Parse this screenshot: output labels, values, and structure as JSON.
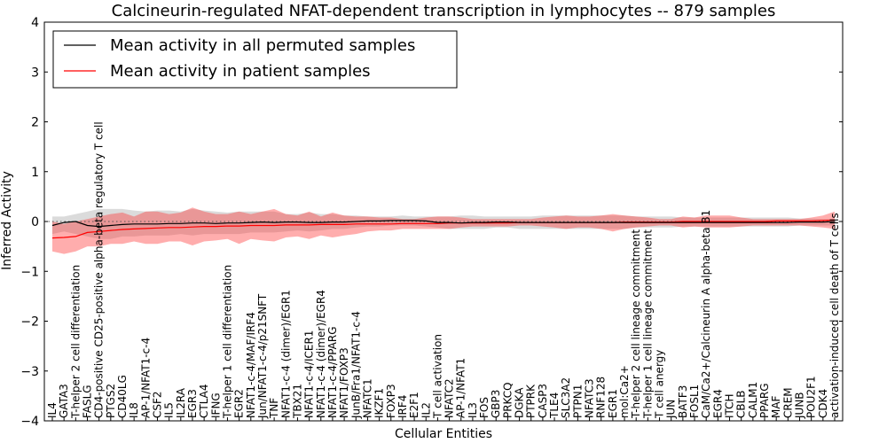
{
  "chart_data": {
    "type": "line",
    "title": "Calcineurin-regulated NFAT-dependent transcription in lymphocytes -- 879 samples",
    "xlabel": "Cellular Entities",
    "ylabel": "Inferred Activity",
    "ylim": [
      -4,
      4
    ],
    "yticks": [
      -4,
      -3,
      -2,
      -1,
      0,
      1,
      2,
      3,
      4
    ],
    "reference_line": 0,
    "legend": {
      "position": "top-left",
      "entries": [
        {
          "label": "Mean activity in all permuted samples",
          "color": "#000000"
        },
        {
          "label": "Mean activity in patient samples",
          "color": "#ff0000"
        }
      ]
    },
    "categories": [
      "IL4",
      "GATA3",
      "T-helper 2 cell differentiation",
      "FASLG",
      "CD4-positive CD25-positive alpha-beta regulatory T cell",
      "PTGS2",
      "CD40LG",
      "IL8",
      "AP-1/NFAT1-c-4",
      "CSF2",
      "IL5",
      "IL2RA",
      "EGR3",
      "CTLA4",
      "IFNG",
      "T-helper 1 cell differentiation",
      "EGR2",
      "NFAT1-c-4/MAF/IRF4",
      "Jun/NFAT1-c-4/p21SNFT",
      "TNF",
      "NFAT1-c-4 (dimer)/EGR1",
      "TBX21",
      "NFAT1-c-4/ICER1",
      "NFAT1-c-4 (dimer)/EGR4",
      "NFAT1-c-4/PPARG",
      "NFAT1/FOXP3",
      "JunB/Fra1/NFAT1-c-4",
      "NFATC1",
      "IKZF1",
      "FOXP3",
      "IRF4",
      "E2F1",
      "IL2",
      "T cell activation",
      "NFATC2",
      "AP-1/NFAT1",
      "IL3",
      "FOS",
      "GBP3",
      "PRKCQ",
      "DGKA",
      "PTPRK",
      "CASP3",
      "TLE4",
      "SLC3A2",
      "PTPN1",
      "NFATC3",
      "RNF128",
      "EGR1",
      "mol:Ca2+",
      "T-helper 2 cell lineage commitment",
      "T-helper 1 cell lineage commitment",
      "T cell anergy",
      "JUN",
      "BATF3",
      "FOSL1",
      "CaM/Ca2+/Calcineurin A alpha-beta B1",
      "EGR4",
      "ITCH",
      "CBLB",
      "CALM1",
      "PPARG",
      "MAF",
      "CREM",
      "JUNB",
      "POU2F1",
      "CDK4",
      "activation-induced cell death of T cells"
    ],
    "series": [
      {
        "name": "Mean activity in all permuted samples",
        "color": "#000000",
        "values": [
          -0.08,
          -0.02,
          0.0,
          -0.08,
          -0.1,
          -0.08,
          -0.06,
          -0.05,
          -0.05,
          -0.05,
          -0.04,
          -0.04,
          -0.03,
          -0.03,
          -0.04,
          -0.03,
          -0.03,
          -0.02,
          -0.01,
          -0.02,
          -0.01,
          -0.01,
          -0.02,
          -0.02,
          -0.01,
          -0.01,
          0.0,
          0.01,
          0.01,
          0.02,
          0.02,
          0.02,
          0.01,
          -0.02,
          -0.02,
          -0.03,
          -0.02,
          -0.02,
          -0.01,
          -0.01,
          -0.02,
          -0.02,
          -0.02,
          -0.02,
          -0.02,
          -0.02,
          -0.02,
          -0.02,
          -0.02,
          -0.02,
          -0.02,
          -0.02,
          -0.02,
          -0.02,
          -0.02,
          -0.02,
          -0.02,
          -0.02,
          -0.02,
          -0.02,
          -0.02,
          -0.02,
          -0.02,
          -0.02,
          -0.01,
          -0.01,
          -0.01,
          0.0
        ],
        "upper": [
          0.1,
          0.1,
          0.15,
          0.2,
          0.25,
          0.25,
          0.25,
          0.22,
          0.2,
          0.22,
          0.22,
          0.2,
          0.25,
          0.22,
          0.2,
          0.18,
          0.2,
          0.2,
          0.2,
          0.2,
          0.15,
          0.15,
          0.18,
          0.15,
          0.15,
          0.12,
          0.12,
          0.1,
          0.1,
          0.1,
          0.12,
          0.1,
          0.1,
          0.1,
          0.1,
          0.12,
          0.12,
          0.1,
          0.1,
          0.1,
          0.1,
          0.1,
          0.12,
          0.12,
          0.12,
          0.12,
          0.12,
          0.12,
          0.12,
          0.12,
          0.1,
          0.1,
          0.1,
          0.1,
          0.08,
          0.08,
          0.08,
          0.08,
          0.08,
          0.08,
          0.08,
          0.08,
          0.08,
          0.08,
          0.06,
          0.06,
          0.05,
          0.05
        ],
        "lower": [
          -0.25,
          -0.2,
          -0.25,
          -0.3,
          -0.35,
          -0.35,
          -0.3,
          -0.3,
          -0.28,
          -0.28,
          -0.28,
          -0.25,
          -0.28,
          -0.25,
          -0.25,
          -0.25,
          -0.25,
          -0.22,
          -0.22,
          -0.22,
          -0.2,
          -0.18,
          -0.2,
          -0.18,
          -0.15,
          -0.15,
          -0.12,
          -0.1,
          -0.1,
          -0.08,
          -0.08,
          -0.08,
          -0.1,
          -0.12,
          -0.15,
          -0.15,
          -0.15,
          -0.15,
          -0.12,
          -0.12,
          -0.15,
          -0.15,
          -0.15,
          -0.15,
          -0.15,
          -0.15,
          -0.15,
          -0.15,
          -0.15,
          -0.15,
          -0.12,
          -0.12,
          -0.12,
          -0.12,
          -0.1,
          -0.1,
          -0.1,
          -0.1,
          -0.1,
          -0.1,
          -0.1,
          -0.1,
          -0.1,
          -0.1,
          -0.08,
          -0.08,
          -0.08,
          -0.08
        ]
      },
      {
        "name": "Mean activity in patient samples",
        "color": "#ff0000",
        "values": [
          -0.33,
          -0.32,
          -0.3,
          -0.22,
          -0.2,
          -0.18,
          -0.16,
          -0.15,
          -0.14,
          -0.13,
          -0.12,
          -0.12,
          -0.11,
          -0.1,
          -0.1,
          -0.09,
          -0.09,
          -0.08,
          -0.08,
          -0.08,
          -0.07,
          -0.07,
          -0.07,
          -0.06,
          -0.06,
          -0.06,
          -0.05,
          -0.05,
          -0.05,
          -0.05,
          -0.04,
          -0.04,
          -0.04,
          -0.04,
          -0.03,
          -0.03,
          -0.03,
          -0.03,
          -0.03,
          -0.03,
          -0.02,
          -0.02,
          -0.02,
          -0.02,
          -0.02,
          -0.02,
          -0.02,
          -0.02,
          -0.02,
          -0.01,
          -0.01,
          -0.01,
          -0.01,
          -0.01,
          0.0,
          0.0,
          0.0,
          0.0,
          0.0,
          0.0,
          0.0,
          0.0,
          0.01,
          0.01,
          0.01,
          0.01,
          0.02,
          0.03
        ],
        "upper": [
          0.0,
          -0.05,
          0.0,
          0.05,
          0.1,
          0.15,
          0.18,
          0.1,
          0.2,
          0.2,
          0.15,
          0.18,
          0.28,
          0.2,
          0.15,
          0.15,
          0.2,
          0.15,
          0.2,
          0.25,
          0.15,
          0.12,
          0.2,
          0.1,
          0.18,
          0.12,
          0.1,
          0.1,
          0.08,
          0.08,
          0.05,
          0.05,
          0.08,
          0.1,
          0.1,
          0.08,
          0.05,
          0.05,
          0.05,
          0.05,
          0.05,
          0.05,
          0.08,
          0.1,
          0.12,
          0.1,
          0.1,
          0.12,
          0.15,
          0.12,
          0.1,
          0.08,
          0.05,
          0.05,
          0.1,
          0.08,
          0.12,
          0.12,
          0.12,
          0.08,
          0.05,
          0.05,
          0.05,
          0.05,
          0.05,
          0.08,
          0.12,
          0.2
        ],
        "lower": [
          -0.6,
          -0.65,
          -0.6,
          -0.5,
          -0.5,
          -0.45,
          -0.45,
          -0.4,
          -0.45,
          -0.45,
          -0.4,
          -0.4,
          -0.48,
          -0.4,
          -0.38,
          -0.35,
          -0.45,
          -0.35,
          -0.38,
          -0.4,
          -0.32,
          -0.3,
          -0.35,
          -0.28,
          -0.32,
          -0.28,
          -0.25,
          -0.2,
          -0.18,
          -0.18,
          -0.15,
          -0.15,
          -0.15,
          -0.15,
          -0.15,
          -0.12,
          -0.1,
          -0.1,
          -0.1,
          -0.1,
          -0.08,
          -0.08,
          -0.1,
          -0.12,
          -0.15,
          -0.12,
          -0.12,
          -0.15,
          -0.2,
          -0.15,
          -0.12,
          -0.1,
          -0.08,
          -0.08,
          -0.12,
          -0.1,
          -0.12,
          -0.12,
          -0.12,
          -0.1,
          -0.08,
          -0.08,
          -0.08,
          -0.08,
          -0.08,
          -0.1,
          -0.12,
          -0.15
        ]
      }
    ]
  }
}
